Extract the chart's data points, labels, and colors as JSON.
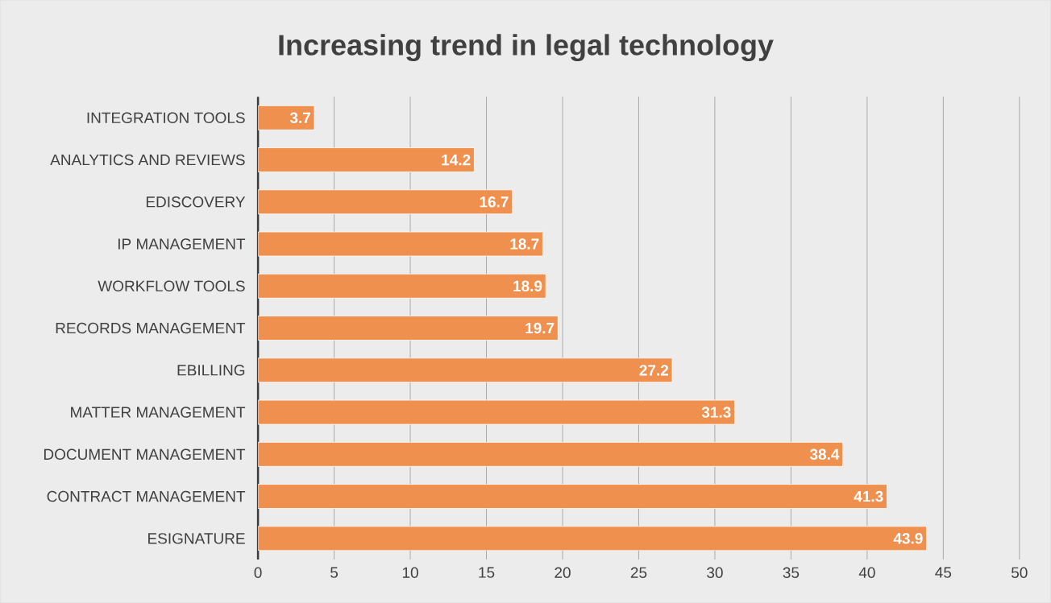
{
  "chart_data": {
    "type": "bar",
    "orientation": "horizontal",
    "title": "Increasing trend in legal technology",
    "categories": [
      "INTEGRATION TOOLS",
      "ANALYTICS AND REVIEWS",
      "EDISCOVERY",
      "IP MANAGEMENT",
      "WORKFLOW TOOLS",
      "RECORDS MANAGEMENT",
      "EBILLING",
      "MATTER MANAGEMENT",
      "DOCUMENT MANAGEMENT",
      "CONTRACT MANAGEMENT",
      "ESIGNATURE"
    ],
    "values": [
      3.7,
      14.2,
      16.7,
      18.7,
      18.9,
      19.7,
      27.2,
      31.3,
      38.4,
      41.3,
      43.9
    ],
    "color": "#f0904f",
    "xlim": [
      0,
      50
    ],
    "xticks": [
      0,
      5,
      10,
      15,
      20,
      25,
      30,
      35,
      40,
      45,
      50
    ],
    "grid": "x",
    "data_labels": true
  }
}
